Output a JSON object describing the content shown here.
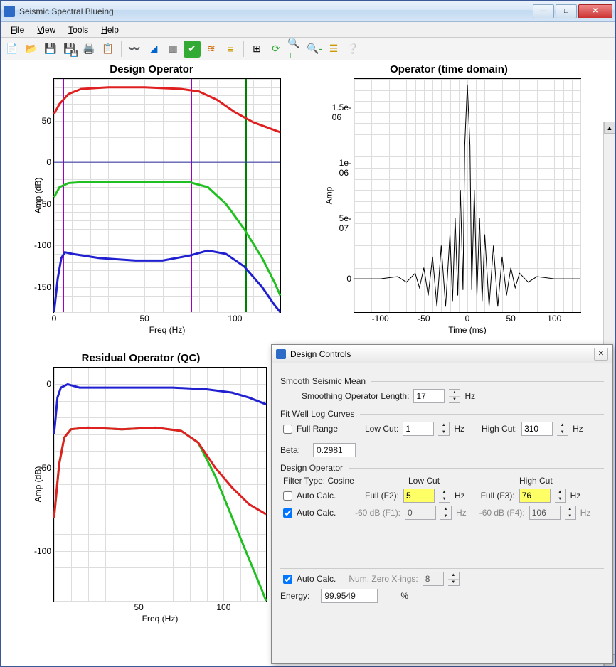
{
  "window": {
    "title": "Seismic Spectral Blueing"
  },
  "menu": {
    "file": "File",
    "view": "View",
    "tools": "Tools",
    "help": "Help"
  },
  "toolbar_icons": [
    "new-icon",
    "open-icon",
    "save-icon",
    "saveall-icon",
    "print-icon",
    "report-icon",
    "sep",
    "wavelet-icon",
    "spectrum-icon",
    "bands-icon",
    "check-icon",
    "log-icon",
    "layers-icon",
    "sep",
    "grid-icon",
    "refresh-icon",
    "zoomin-icon",
    "zoomout-icon",
    "stack-icon",
    "help-icon"
  ],
  "charts": {
    "design_operator": {
      "title": "Design Operator",
      "xlabel": "Freq (Hz)",
      "ylabel": "Amp (dB)",
      "xlim": [
        0,
        125
      ],
      "ylim": [
        -180,
        100
      ],
      "xticks": [
        0,
        50,
        100
      ],
      "yticks": [
        -150,
        -100,
        -50,
        0,
        50
      ],
      "grid_color": "#dddddd",
      "series": [
        {
          "name": "red",
          "color": "#e02020",
          "width": 3,
          "pts": [
            [
              0,
              58
            ],
            [
              3,
              70
            ],
            [
              8,
              82
            ],
            [
              15,
              88
            ],
            [
              30,
              90
            ],
            [
              50,
              90
            ],
            [
              70,
              88
            ],
            [
              80,
              85
            ],
            [
              90,
              75
            ],
            [
              100,
              60
            ],
            [
              110,
              48
            ],
            [
              120,
              40
            ],
            [
              125,
              36
            ]
          ]
        },
        {
          "name": "green",
          "color": "#20c020",
          "width": 3,
          "pts": [
            [
              0,
              -42
            ],
            [
              3,
              -30
            ],
            [
              8,
              -25
            ],
            [
              15,
              -24
            ],
            [
              40,
              -24
            ],
            [
              60,
              -24
            ],
            [
              75,
              -24
            ],
            [
              85,
              -30
            ],
            [
              95,
              -50
            ],
            [
              105,
              -80
            ],
            [
              115,
              -115
            ],
            [
              122,
              -145
            ],
            [
              125,
              -160
            ]
          ]
        },
        {
          "name": "blue",
          "color": "#2020d0",
          "width": 3,
          "pts": [
            [
              0,
              -180
            ],
            [
              2,
              -140
            ],
            [
              4,
              -115
            ],
            [
              6,
              -108
            ],
            [
              10,
              -110
            ],
            [
              25,
              -115
            ],
            [
              45,
              -118
            ],
            [
              60,
              -118
            ],
            [
              75,
              -112
            ],
            [
              85,
              -106
            ],
            [
              95,
              -110
            ],
            [
              105,
              -125
            ],
            [
              115,
              -150
            ],
            [
              122,
              -172
            ],
            [
              125,
              -180
            ]
          ]
        },
        {
          "name": "zero",
          "color": "#3030a0",
          "width": 1,
          "pts": [
            [
              0,
              0
            ],
            [
              125,
              0
            ]
          ]
        }
      ],
      "vlines": [
        {
          "x": 5,
          "color": "#a000c0"
        },
        {
          "x": 76,
          "color": "#a000c0"
        },
        {
          "x": 106,
          "color": "#008000"
        }
      ]
    },
    "operator_time": {
      "title": "Operator (time domain)",
      "xlabel": "Time (ms)",
      "ylabel": "Amp",
      "xlim": [
        -130,
        130
      ],
      "ylim": [
        -3e-07,
        1.8e-06
      ],
      "xticks": [
        -100,
        -50,
        0,
        50,
        100
      ],
      "yticks_labels": [
        "0",
        "5e-07",
        "1e-06",
        "1.5e-06"
      ],
      "yticks_vals": [
        0,
        5e-07,
        1e-06,
        1.5e-06
      ],
      "grid_color": "#dddddd",
      "series": [
        {
          "name": "wavelet",
          "color": "#000000",
          "width": 1,
          "pts": [
            [
              -130,
              0
            ],
            [
              -100,
              0
            ],
            [
              -80,
              2e-08
            ],
            [
              -70,
              -3e-08
            ],
            [
              -60,
              5e-08
            ],
            [
              -55,
              -8e-08
            ],
            [
              -50,
              1e-07
            ],
            [
              -45,
              -1.5e-07
            ],
            [
              -40,
              2e-07
            ],
            [
              -35,
              -2.5e-07
            ],
            [
              -30,
              3e-07
            ],
            [
              -25,
              -2.5e-07
            ],
            [
              -20,
              4e-07
            ],
            [
              -17,
              -2e-07
            ],
            [
              -14,
              5.5e-07
            ],
            [
              -11,
              -1.5e-07
            ],
            [
              -8,
              8e-07
            ],
            [
              -5,
              -1e-07
            ],
            [
              -3,
              1.2e-06
            ],
            [
              0,
              1.75e-06
            ],
            [
              3,
              1.2e-06
            ],
            [
              5,
              -1e-07
            ],
            [
              8,
              8e-07
            ],
            [
              11,
              -1.5e-07
            ],
            [
              14,
              5.5e-07
            ],
            [
              17,
              -2e-07
            ],
            [
              20,
              4e-07
            ],
            [
              25,
              -2.5e-07
            ],
            [
              30,
              3e-07
            ],
            [
              35,
              -2.5e-07
            ],
            [
              40,
              2e-07
            ],
            [
              45,
              -1.5e-07
            ],
            [
              50,
              1e-07
            ],
            [
              55,
              -8e-08
            ],
            [
              60,
              5e-08
            ],
            [
              70,
              -3e-08
            ],
            [
              80,
              2e-08
            ],
            [
              100,
              0
            ],
            [
              130,
              0
            ]
          ]
        }
      ]
    },
    "residual_operator": {
      "title": "Residual Operator (QC)",
      "xlabel": "Freq (Hz)",
      "ylabel": "Amp (dB)",
      "xlim": [
        0,
        125
      ],
      "ylim": [
        -130,
        10
      ],
      "xticks": [
        50,
        100
      ],
      "yticks": [
        -100,
        -50,
        0
      ],
      "grid_color": "#dddddd",
      "series": [
        {
          "name": "blue",
          "color": "#2020d0",
          "width": 3,
          "pts": [
            [
              0,
              -30
            ],
            [
              2,
              -8
            ],
            [
              4,
              -2
            ],
            [
              8,
              0
            ],
            [
              15,
              -2
            ],
            [
              40,
              -2
            ],
            [
              70,
              -2
            ],
            [
              90,
              -3
            ],
            [
              105,
              -5
            ],
            [
              115,
              -8
            ],
            [
              125,
              -12
            ]
          ]
        },
        {
          "name": "green",
          "color": "#20c020",
          "width": 3,
          "pts": [
            [
              0,
              -80
            ],
            [
              3,
              -48
            ],
            [
              6,
              -32
            ],
            [
              10,
              -27
            ],
            [
              20,
              -26
            ],
            [
              40,
              -27
            ],
            [
              60,
              -26
            ],
            [
              75,
              -28
            ],
            [
              85,
              -35
            ],
            [
              95,
              -55
            ],
            [
              105,
              -80
            ],
            [
              115,
              -105
            ],
            [
              122,
              -122
            ],
            [
              125,
              -130
            ]
          ]
        },
        {
          "name": "red",
          "color": "#e02020",
          "width": 3,
          "pts": [
            [
              0,
              -80
            ],
            [
              3,
              -48
            ],
            [
              6,
              -32
            ],
            [
              10,
              -27
            ],
            [
              20,
              -26
            ],
            [
              40,
              -27
            ],
            [
              60,
              -26
            ],
            [
              75,
              -28
            ],
            [
              85,
              -35
            ],
            [
              95,
              -50
            ],
            [
              105,
              -62
            ],
            [
              115,
              -72
            ],
            [
              125,
              -78
            ]
          ]
        }
      ]
    }
  },
  "design_controls": {
    "title": "Design Controls",
    "smooth_seismic": {
      "label": "Smooth Seismic Mean",
      "smoothing_label": "Smoothing Operator Length:",
      "smoothing_value": "17",
      "smoothing_unit": "Hz"
    },
    "fit_well": {
      "label": "Fit Well Log Curves",
      "full_range_label": "Full Range",
      "full_range_checked": false,
      "low_cut_label": "Low Cut:",
      "low_cut_value": "1",
      "high_cut_label": "High Cut:",
      "high_cut_value": "310",
      "unit": "Hz"
    },
    "beta": {
      "label": "Beta:",
      "value": "0.2981"
    },
    "design_op": {
      "label": "Design Operator",
      "filter_type_label": "Filter Type: Cosine",
      "low_cut_header": "Low Cut",
      "high_cut_header": "High Cut",
      "auto1_label": "Auto Calc.",
      "auto1_checked": false,
      "full_f2_label": "Full (F2):",
      "full_f2_value": "5",
      "full_f3_label": "Full (F3):",
      "full_f3_value": "76",
      "auto2_label": "Auto Calc.",
      "auto2_checked": true,
      "neg60_f1_label": "-60 dB (F1):",
      "neg60_f1_value": "0",
      "neg60_f4_label": "-60 dB (F4):",
      "neg60_f4_value": "106",
      "unit": "Hz"
    },
    "footer": {
      "auto_label": "Auto Calc.",
      "auto_checked": true,
      "num_xings_label": "Num. Zero X-ings:",
      "num_xings_value": "8",
      "energy_label": "Energy:",
      "energy_value": "99.9549",
      "energy_unit": "%"
    }
  }
}
